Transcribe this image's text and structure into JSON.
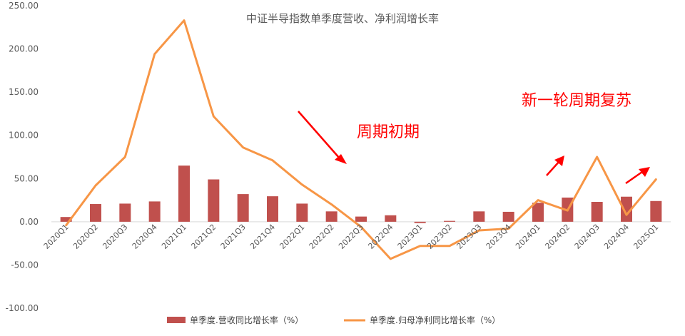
{
  "chart_data": {
    "type": "bar+line",
    "title": "中证半导指数单季度营收、净利润增长率",
    "categories": [
      "2020Q1",
      "2020Q2",
      "2020Q3",
      "2020Q4",
      "2021Q1",
      "2021Q2",
      "2021Q3",
      "2021Q4",
      "2022Q1",
      "2022Q2",
      "2022Q3",
      "2022Q4",
      "2023Q1",
      "2023Q2",
      "2023Q3",
      "2023Q4",
      "2024Q1",
      "2024Q2",
      "2024Q3",
      "2024Q4",
      "2025Q1"
    ],
    "yticks": [
      "250.00",
      "200.00",
      "150.00",
      "100.00",
      "50.00",
      "0.00",
      "-50.00",
      "-100.00"
    ],
    "ylim": [
      -100,
      250
    ],
    "grid": true,
    "legend_position": "bottom",
    "series": [
      {
        "name": "单季度.营收同比增长率（%）",
        "type": "bar",
        "color": "#c0504d",
        "values": [
          5.5,
          20.5,
          21,
          23.5,
          65,
          49,
          32,
          29.5,
          21,
          12,
          6,
          7.5,
          -1.5,
          1,
          12,
          11.5,
          22,
          28,
          23,
          29,
          24
        ]
      },
      {
        "name": "单季度.归母净利同比增长率（%）",
        "type": "line",
        "color": "#f79646",
        "values": [
          -4,
          42,
          75,
          194,
          233,
          122,
          86,
          71,
          43,
          20,
          -6,
          -43,
          -28,
          -28,
          -10,
          -8,
          25,
          13,
          75,
          8,
          49
        ]
      }
    ],
    "annotations": [
      {
        "text": "周期初期",
        "color": "#ff0000"
      },
      {
        "text": "新一轮周期复苏",
        "color": "#ff0000"
      }
    ]
  }
}
